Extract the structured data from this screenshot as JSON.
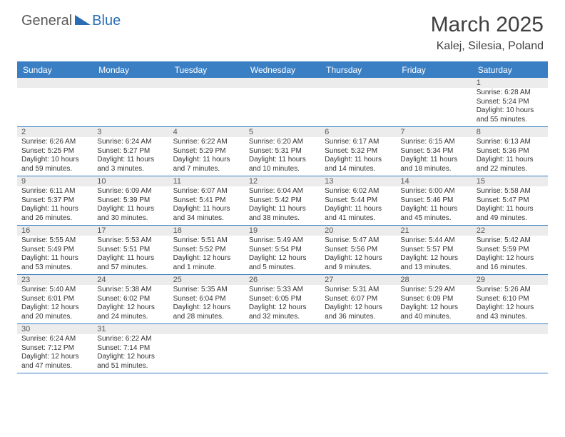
{
  "logo": {
    "part1": "General",
    "part2": "Blue"
  },
  "title": "March 2025",
  "location": "Kalej, Silesia, Poland",
  "colors": {
    "header_bg": "#3a7fc4",
    "daynum_bg": "#ececec",
    "border": "#3a7fc4",
    "text": "#333333",
    "logo_gray": "#5a5a5a",
    "logo_blue": "#2a6db5"
  },
  "day_labels": [
    "Sunday",
    "Monday",
    "Tuesday",
    "Wednesday",
    "Thursday",
    "Friday",
    "Saturday"
  ],
  "weeks": [
    [
      null,
      null,
      null,
      null,
      null,
      null,
      {
        "n": "1",
        "sr": "6:28 AM",
        "ss": "5:24 PM",
        "dl": "10 hours and 55 minutes."
      }
    ],
    [
      {
        "n": "2",
        "sr": "6:26 AM",
        "ss": "5:25 PM",
        "dl": "10 hours and 59 minutes."
      },
      {
        "n": "3",
        "sr": "6:24 AM",
        "ss": "5:27 PM",
        "dl": "11 hours and 3 minutes."
      },
      {
        "n": "4",
        "sr": "6:22 AM",
        "ss": "5:29 PM",
        "dl": "11 hours and 7 minutes."
      },
      {
        "n": "5",
        "sr": "6:20 AM",
        "ss": "5:31 PM",
        "dl": "11 hours and 10 minutes."
      },
      {
        "n": "6",
        "sr": "6:17 AM",
        "ss": "5:32 PM",
        "dl": "11 hours and 14 minutes."
      },
      {
        "n": "7",
        "sr": "6:15 AM",
        "ss": "5:34 PM",
        "dl": "11 hours and 18 minutes."
      },
      {
        "n": "8",
        "sr": "6:13 AM",
        "ss": "5:36 PM",
        "dl": "11 hours and 22 minutes."
      }
    ],
    [
      {
        "n": "9",
        "sr": "6:11 AM",
        "ss": "5:37 PM",
        "dl": "11 hours and 26 minutes."
      },
      {
        "n": "10",
        "sr": "6:09 AM",
        "ss": "5:39 PM",
        "dl": "11 hours and 30 minutes."
      },
      {
        "n": "11",
        "sr": "6:07 AM",
        "ss": "5:41 PM",
        "dl": "11 hours and 34 minutes."
      },
      {
        "n": "12",
        "sr": "6:04 AM",
        "ss": "5:42 PM",
        "dl": "11 hours and 38 minutes."
      },
      {
        "n": "13",
        "sr": "6:02 AM",
        "ss": "5:44 PM",
        "dl": "11 hours and 41 minutes."
      },
      {
        "n": "14",
        "sr": "6:00 AM",
        "ss": "5:46 PM",
        "dl": "11 hours and 45 minutes."
      },
      {
        "n": "15",
        "sr": "5:58 AM",
        "ss": "5:47 PM",
        "dl": "11 hours and 49 minutes."
      }
    ],
    [
      {
        "n": "16",
        "sr": "5:55 AM",
        "ss": "5:49 PM",
        "dl": "11 hours and 53 minutes."
      },
      {
        "n": "17",
        "sr": "5:53 AM",
        "ss": "5:51 PM",
        "dl": "11 hours and 57 minutes."
      },
      {
        "n": "18",
        "sr": "5:51 AM",
        "ss": "5:52 PM",
        "dl": "12 hours and 1 minute."
      },
      {
        "n": "19",
        "sr": "5:49 AM",
        "ss": "5:54 PM",
        "dl": "12 hours and 5 minutes."
      },
      {
        "n": "20",
        "sr": "5:47 AM",
        "ss": "5:56 PM",
        "dl": "12 hours and 9 minutes."
      },
      {
        "n": "21",
        "sr": "5:44 AM",
        "ss": "5:57 PM",
        "dl": "12 hours and 13 minutes."
      },
      {
        "n": "22",
        "sr": "5:42 AM",
        "ss": "5:59 PM",
        "dl": "12 hours and 16 minutes."
      }
    ],
    [
      {
        "n": "23",
        "sr": "5:40 AM",
        "ss": "6:01 PM",
        "dl": "12 hours and 20 minutes."
      },
      {
        "n": "24",
        "sr": "5:38 AM",
        "ss": "6:02 PM",
        "dl": "12 hours and 24 minutes."
      },
      {
        "n": "25",
        "sr": "5:35 AM",
        "ss": "6:04 PM",
        "dl": "12 hours and 28 minutes."
      },
      {
        "n": "26",
        "sr": "5:33 AM",
        "ss": "6:05 PM",
        "dl": "12 hours and 32 minutes."
      },
      {
        "n": "27",
        "sr": "5:31 AM",
        "ss": "6:07 PM",
        "dl": "12 hours and 36 minutes."
      },
      {
        "n": "28",
        "sr": "5:29 AM",
        "ss": "6:09 PM",
        "dl": "12 hours and 40 minutes."
      },
      {
        "n": "29",
        "sr": "5:26 AM",
        "ss": "6:10 PM",
        "dl": "12 hours and 43 minutes."
      }
    ],
    [
      {
        "n": "30",
        "sr": "6:24 AM",
        "ss": "7:12 PM",
        "dl": "12 hours and 47 minutes."
      },
      {
        "n": "31",
        "sr": "6:22 AM",
        "ss": "7:14 PM",
        "dl": "12 hours and 51 minutes."
      },
      null,
      null,
      null,
      null,
      null
    ]
  ],
  "labels": {
    "sunrise": "Sunrise:",
    "sunset": "Sunset:",
    "daylight": "Daylight:"
  }
}
